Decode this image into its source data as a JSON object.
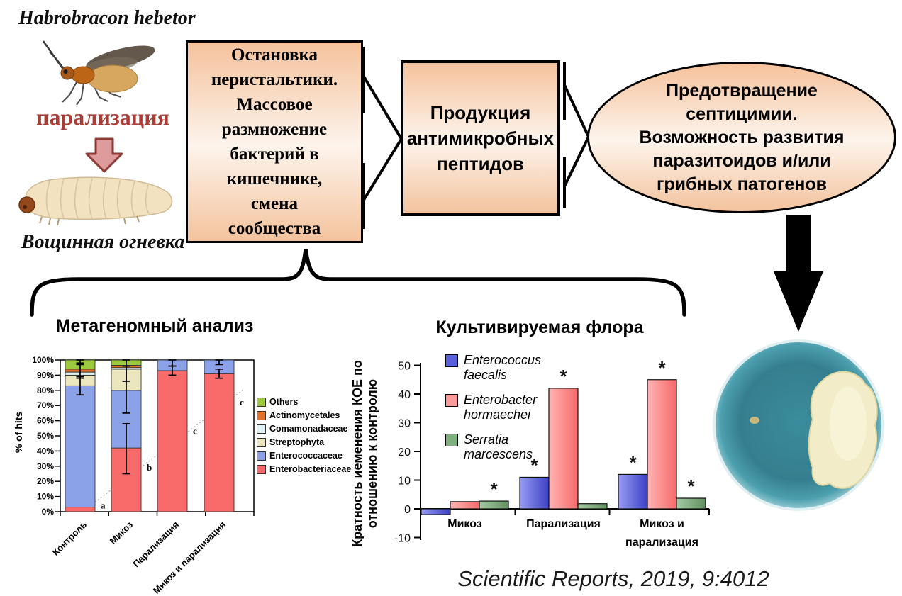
{
  "header": {
    "parasitoid_name": "Habrobracon hebetor",
    "paralysis_label": "парализация",
    "host_name": "Вощинная огневка"
  },
  "flow": {
    "box1_lines": [
      "Остановка",
      "перистальтики.",
      "Массовое",
      "размножение",
      "бактерий в",
      "кишечнике,",
      "смена",
      "сообщества"
    ],
    "box2_lines": [
      "Продукция",
      "антимикробных",
      "пептидов"
    ],
    "ellipse_lines": [
      "Предотвращение",
      "септицимии.",
      "Возможность развития",
      "паразитоидов и/или",
      "грибных патогенов"
    ]
  },
  "section_titles": {
    "metagenomic": "Метагеномный анализ",
    "cultured": "Культивируемая флора"
  },
  "citation": "Scientific Reports, 2019, 9:4012",
  "colors": {
    "paralysis_text": "#A93C34",
    "red_arrow_fill": "#DE9B9B",
    "red_arrow_border": "#8E3B35",
    "petri_teal": "#35808F",
    "petri_colony": "#F2EDC8"
  },
  "chart_data": [
    {
      "id": "metagenomic",
      "type": "stacked-bar",
      "title": "Метагеномный анализ",
      "ylabel": "% of hits",
      "ylim": [
        0,
        100
      ],
      "ytick_step": 10,
      "ytick_suffix": "%",
      "grid": false,
      "legend_position": "right",
      "categories": [
        "Контроль",
        "Микоз",
        "Парализация",
        "Микоз и парализация"
      ],
      "series": [
        {
          "name": "Enterobacteriaceae",
          "color": "#F96A6A",
          "values": [
            3,
            42,
            93,
            91
          ]
        },
        {
          "name": "Enterococcaceae",
          "color": "#8CA2E8",
          "values": [
            80,
            38,
            7,
            9
          ]
        },
        {
          "name": "Streptophyta",
          "color": "#EBE6BE",
          "values": [
            7,
            14,
            0,
            0
          ]
        },
        {
          "name": "Comamonadaceae",
          "color": "#DFF2F5",
          "values": [
            2,
            1,
            0,
            0
          ]
        },
        {
          "name": "Actinomycetales",
          "color": "#E2712A",
          "values": [
            2,
            1.5,
            0,
            0
          ]
        },
        {
          "name": "Others",
          "color": "#9DC93D",
          "values": [
            6,
            3.5,
            0,
            0
          ]
        }
      ],
      "legend_top_to_bottom": [
        "Others",
        "Actinomycetales",
        "Comamonadaceae",
        "Streptophyta",
        "Enterococcaceae",
        "Enterobacteriaceae"
      ],
      "error_bars": [
        [
          {
            "c": 83,
            "lo": 77,
            "hi": 89
          },
          {
            "c": 93,
            "lo": 88,
            "hi": 98
          },
          {
            "c": 99,
            "lo": 97,
            "hi": 100
          }
        ],
        [
          {
            "c": 42,
            "lo": 25,
            "hi": 58
          },
          {
            "c": 80,
            "lo": 65,
            "hi": 96
          },
          {
            "c": 97,
            "lo": 86,
            "hi": 100
          }
        ],
        [
          {
            "c": 93,
            "lo": 90,
            "hi": 96
          },
          {
            "c": 99,
            "lo": 96,
            "hi": 100
          }
        ],
        [
          {
            "c": 91,
            "lo": 88,
            "hi": 94
          },
          {
            "c": 99,
            "lo": 97,
            "hi": 100
          }
        ]
      ],
      "letters": [
        {
          "text": "a",
          "cat": 0,
          "pct": 4
        },
        {
          "text": "b",
          "cat": 1,
          "pct": 29
        },
        {
          "text": "c",
          "cat": 2,
          "pct": 53
        },
        {
          "text": "c",
          "cat": 3,
          "pct": 72
        }
      ],
      "trend_line": {
        "start_pct": 2,
        "end_pct": 80
      }
    },
    {
      "id": "cultured",
      "type": "grouped-bar",
      "title": "Культивируемая флора",
      "ylabel": "Кратность иеменения КОЕ по отношению к контролю",
      "ylabel_lines": [
        "Кратность иеменения КОЕ по",
        "отношению к контролю"
      ],
      "ylim": [
        -10,
        50
      ],
      "yticks": [
        -10,
        0,
        10,
        20,
        30,
        40,
        50
      ],
      "grid": false,
      "legend_position": "top-left-inside",
      "significance_marker": "*",
      "categories": [
        "Микоз",
        "Парализация",
        "Микоз и парализация"
      ],
      "cat_lines": [
        [
          "Микоз"
        ],
        [
          "Парализация"
        ],
        [
          "Микоз и",
          "парализация"
        ]
      ],
      "series": [
        {
          "name": "Enterococcus faecalis",
          "name_lines": [
            "Enterococcus",
            "faecalis"
          ],
          "color": "#5A60DC",
          "grad": [
            "#989CF4",
            "#3B41C4"
          ],
          "values": [
            -2,
            11,
            12
          ],
          "stars": [
            false,
            true,
            true
          ]
        },
        {
          "name": "Enterobacter hormaechei",
          "name_lines": [
            "Enterobacter",
            "hormaechei"
          ],
          "color": "#FA9A9A",
          "grad": [
            "#FFB4B4",
            "#F76A6A"
          ],
          "values": [
            2.5,
            42,
            45
          ],
          "stars": [
            false,
            true,
            true
          ]
        },
        {
          "name": "Serratia marcescens",
          "name_lines": [
            "Serratia",
            "marcescens"
          ],
          "color": "#7FAE7F",
          "grad": [
            "#A4CAA4",
            "#629062"
          ],
          "values": [
            2.7,
            1.8,
            3.7
          ],
          "stars": [
            true,
            false,
            true
          ]
        }
      ]
    }
  ]
}
